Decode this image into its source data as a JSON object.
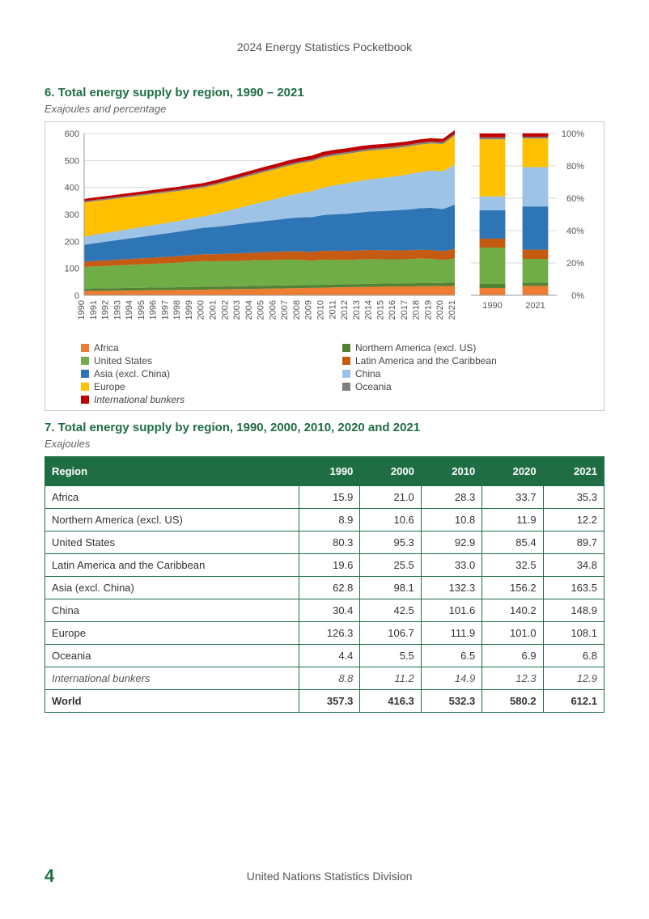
{
  "header": {
    "title": "2024 Energy Statistics Pocketbook"
  },
  "section6": {
    "title": "6. Total energy supply by region, 1990 – 2021",
    "subtitle": "Exajoules and percentage"
  },
  "chart": {
    "type": "stacked-area-plus-stacked-bar",
    "background_color": "#ffffff",
    "border_color": "#cccccc",
    "grid_color": "#d9d9d9",
    "left": {
      "years": [
        1990,
        1991,
        1992,
        1993,
        1994,
        1995,
        1996,
        1997,
        1998,
        1999,
        2000,
        2001,
        2002,
        2003,
        2004,
        2005,
        2006,
        2007,
        2008,
        2009,
        2010,
        2011,
        2012,
        2013,
        2014,
        2015,
        2016,
        2017,
        2018,
        2019,
        2020,
        2021
      ],
      "ylim": [
        0,
        600
      ],
      "ytick_step": 100,
      "series_order": [
        "africa",
        "na_excl_us",
        "us",
        "lac",
        "asia_excl_cn",
        "china",
        "europe",
        "oceania",
        "intl_bunkers"
      ],
      "series": {
        "africa": [
          15.9,
          16.4,
          16.8,
          17.3,
          17.8,
          18.3,
          18.8,
          19.3,
          19.8,
          20.4,
          21.0,
          21.7,
          22.4,
          23.1,
          23.8,
          24.5,
          25.3,
          26.0,
          26.8,
          27.5,
          28.3,
          29.1,
          29.9,
          30.7,
          31.4,
          32.0,
          32.5,
          33.0,
          33.4,
          33.6,
          33.7,
          35.3
        ],
        "na_excl_us": [
          8.9,
          9.1,
          9.2,
          9.4,
          9.6,
          9.7,
          9.9,
          10.0,
          10.2,
          10.4,
          10.6,
          10.6,
          10.6,
          10.7,
          10.7,
          10.7,
          10.7,
          10.7,
          10.8,
          10.8,
          10.8,
          10.9,
          11.0,
          11.1,
          11.2,
          11.4,
          11.5,
          11.6,
          11.7,
          11.8,
          11.9,
          12.2
        ],
        "us": [
          80.3,
          81.8,
          83.0,
          84.5,
          85.8,
          87.0,
          88.3,
          89.8,
          91.2,
          93.5,
          95.3,
          93.8,
          94.0,
          94.2,
          95.0,
          95.2,
          94.8,
          95.5,
          94.0,
          90.0,
          92.9,
          92.0,
          90.5,
          91.0,
          91.5,
          90.0,
          89.5,
          89.0,
          91.0,
          90.0,
          85.4,
          89.7
        ],
        "lac": [
          19.6,
          20.2,
          20.8,
          21.4,
          22.0,
          22.5,
          23.1,
          23.7,
          24.3,
          24.9,
          25.5,
          26.3,
          27.0,
          27.8,
          28.5,
          29.3,
          30.0,
          30.8,
          31.5,
          32.3,
          33.0,
          33.2,
          33.4,
          33.6,
          33.8,
          33.5,
          33.2,
          33.0,
          32.8,
          32.6,
          32.5,
          34.8
        ],
        "asia_excl_cn": [
          62.8,
          66.3,
          69.9,
          73.4,
          76.9,
          80.4,
          84.0,
          87.5,
          91.0,
          94.6,
          98.1,
          101.5,
          104.9,
          108.4,
          111.8,
          115.2,
          118.6,
          122.0,
          125.5,
          128.9,
          132.3,
          135.0,
          137.7,
          140.4,
          143.0,
          145.6,
          148.3,
          150.9,
          153.6,
          156.2,
          156.2,
          163.5
        ],
        "china": [
          30.4,
          31.6,
          32.8,
          34.0,
          35.2,
          36.4,
          37.7,
          38.9,
          40.1,
          41.3,
          42.5,
          48.4,
          54.3,
          60.2,
          66.1,
          72.0,
          77.9,
          83.8,
          89.8,
          95.7,
          101.6,
          108.0,
          113.0,
          117.0,
          120.0,
          123.0,
          126.0,
          130.0,
          134.0,
          138.0,
          140.2,
          148.9
        ],
        "europe": [
          126.3,
          124.3,
          122.4,
          120.4,
          118.5,
          116.5,
          114.6,
          112.6,
          110.6,
          108.7,
          106.7,
          107.2,
          107.7,
          108.2,
          108.8,
          109.3,
          109.8,
          110.3,
          110.8,
          111.4,
          111.9,
          110.5,
          109.0,
          107.8,
          106.6,
          105.5,
          104.4,
          103.2,
          102.1,
          101.0,
          101.0,
          108.1
        ],
        "oceania": [
          4.4,
          4.5,
          4.6,
          4.7,
          4.8,
          5.0,
          5.1,
          5.2,
          5.3,
          5.4,
          5.5,
          5.6,
          5.7,
          5.8,
          5.9,
          6.0,
          6.1,
          6.2,
          6.3,
          6.4,
          6.5,
          6.5,
          6.6,
          6.6,
          6.7,
          6.7,
          6.8,
          6.8,
          6.9,
          6.9,
          6.9,
          6.8
        ],
        "intl_bunkers": [
          8.8,
          9.0,
          9.3,
          9.5,
          9.8,
          10.0,
          10.2,
          10.5,
          10.7,
          11.0,
          11.2,
          11.6,
          12.0,
          12.3,
          12.7,
          13.1,
          13.4,
          13.8,
          14.2,
          14.5,
          14.9,
          14.6,
          14.3,
          14.0,
          13.7,
          13.4,
          13.1,
          12.8,
          12.5,
          12.3,
          12.3,
          12.9
        ]
      }
    },
    "right": {
      "years": [
        "1990",
        "2021"
      ],
      "ylim": [
        0,
        100
      ],
      "ytick_step": 20,
      "percentages": {
        "1990": {
          "africa": 4.5,
          "na_excl_us": 2.5,
          "us": 22.5,
          "lac": 5.5,
          "asia_excl_cn": 17.6,
          "china": 8.5,
          "europe": 35.3,
          "oceania": 1.2,
          "intl_bunkers": 2.4
        },
        "2021": {
          "africa": 5.8,
          "na_excl_us": 2.0,
          "us": 14.7,
          "lac": 5.7,
          "asia_excl_cn": 26.7,
          "china": 24.3,
          "europe": 17.7,
          "oceania": 1.1,
          "intl_bunkers": 2.1
        }
      }
    },
    "colors": {
      "africa": "#ed7d31",
      "na_excl_us": "#548235",
      "us": "#70ad47",
      "lac": "#c55a11",
      "asia_excl_cn": "#2e75b6",
      "china": "#9dc3e6",
      "europe": "#ffc000",
      "oceania": "#7f7f7f",
      "intl_bunkers": "#c00000"
    },
    "legend": [
      {
        "key": "africa",
        "label": "Africa"
      },
      {
        "key": "na_excl_us",
        "label": "Northern America (excl. US)"
      },
      {
        "key": "us",
        "label": "United States"
      },
      {
        "key": "lac",
        "label": "Latin America and the Caribbean"
      },
      {
        "key": "asia_excl_cn",
        "label": "Asia (excl. China)"
      },
      {
        "key": "china",
        "label": "China"
      },
      {
        "key": "europe",
        "label": "Europe"
      },
      {
        "key": "oceania",
        "label": "Oceania"
      },
      {
        "key": "intl_bunkers",
        "label": "International bunkers",
        "italic": true
      }
    ]
  },
  "section7": {
    "title": "7. Total energy supply by region, 1990, 2000, 2010, 2020 and 2021",
    "subtitle": "Exajoules"
  },
  "table": {
    "header_bg": "#1f6e43",
    "header_fg": "#ffffff",
    "border_color": "#1f6e43",
    "columns": [
      "Region",
      "1990",
      "2000",
      "2010",
      "2020",
      "2021"
    ],
    "rows": [
      {
        "cells": [
          "Africa",
          "15.9",
          "21.0",
          "28.3",
          "33.7",
          "35.3"
        ]
      },
      {
        "cells": [
          "Northern America (excl. US)",
          "8.9",
          "10.6",
          "10.8",
          "11.9",
          "12.2"
        ]
      },
      {
        "cells": [
          "United States",
          "80.3",
          "95.3",
          "92.9",
          "85.4",
          "89.7"
        ]
      },
      {
        "cells": [
          "Latin America and the Caribbean",
          "19.6",
          "25.5",
          "33.0",
          "32.5",
          "34.8"
        ]
      },
      {
        "cells": [
          "Asia (excl. China)",
          "62.8",
          "98.1",
          "132.3",
          "156.2",
          "163.5"
        ]
      },
      {
        "cells": [
          "China",
          "30.4",
          "42.5",
          "101.6",
          "140.2",
          "148.9"
        ]
      },
      {
        "cells": [
          "Europe",
          "126.3",
          "106.7",
          "111.9",
          "101.0",
          "108.1"
        ]
      },
      {
        "cells": [
          "Oceania",
          "4.4",
          "5.5",
          "6.5",
          "6.9",
          "6.8"
        ]
      },
      {
        "cells": [
          "International bunkers",
          "8.8",
          "11.2",
          "14.9",
          "12.3",
          "12.9"
        ],
        "italic": true
      },
      {
        "cells": [
          "World",
          "357.3",
          "416.3",
          "532.3",
          "580.2",
          "612.1"
        ],
        "bold": true
      }
    ]
  },
  "footer": {
    "page": "4",
    "text": "United Nations Statistics Division"
  }
}
